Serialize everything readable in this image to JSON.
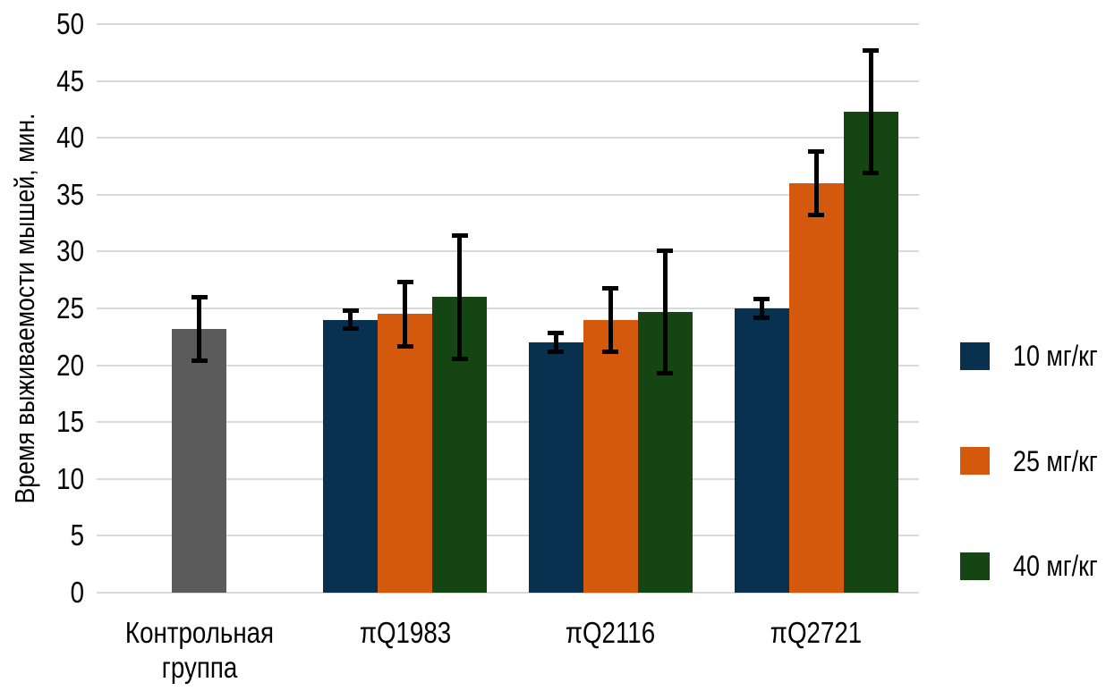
{
  "chart_data": {
    "type": "bar",
    "title": "",
    "xlabel": "",
    "ylabel": "Время выживаемости мышей, мин.",
    "ylim": [
      0,
      50
    ],
    "yticks": [
      0,
      5,
      10,
      15,
      20,
      25,
      30,
      35,
      40,
      45,
      50
    ],
    "grid": true,
    "gridline_color": "#D9D9D9",
    "text_color": "#000000",
    "error_bar_color": "#000000",
    "legend_position": "right",
    "categories": [
      "Контрольная группа",
      "πQ1983",
      "πQ2116",
      "πQ2721"
    ],
    "category_label_lines": [
      [
        "Контрольная",
        "группа"
      ],
      [
        "πQ1983"
      ],
      [
        "πQ2116"
      ],
      [
        "πQ2721"
      ]
    ],
    "series": [
      {
        "name": "Контрольная группа",
        "color": "#5B5B5B",
        "show_in_legend": false,
        "values": [
          23.2,
          null,
          null,
          null
        ],
        "errors": [
          3.0,
          null,
          null,
          null
        ]
      },
      {
        "name": "10 мг/кг",
        "color": "#083150",
        "show_in_legend": true,
        "values": [
          null,
          24.0,
          22.0,
          25.0
        ],
        "errors": [
          null,
          1.0,
          1.0,
          1.0
        ]
      },
      {
        "name": "25 мг/кг",
        "color": "#D4590D",
        "show_in_legend": true,
        "values": [
          null,
          24.5,
          24.0,
          36.0
        ],
        "errors": [
          null,
          3.0,
          3.0,
          3.0
        ]
      },
      {
        "name": "40 мг/кг",
        "color": "#154513",
        "show_in_legend": true,
        "values": [
          null,
          26.0,
          24.7,
          42.3
        ],
        "errors": [
          null,
          5.6,
          5.6,
          5.6
        ]
      }
    ]
  }
}
